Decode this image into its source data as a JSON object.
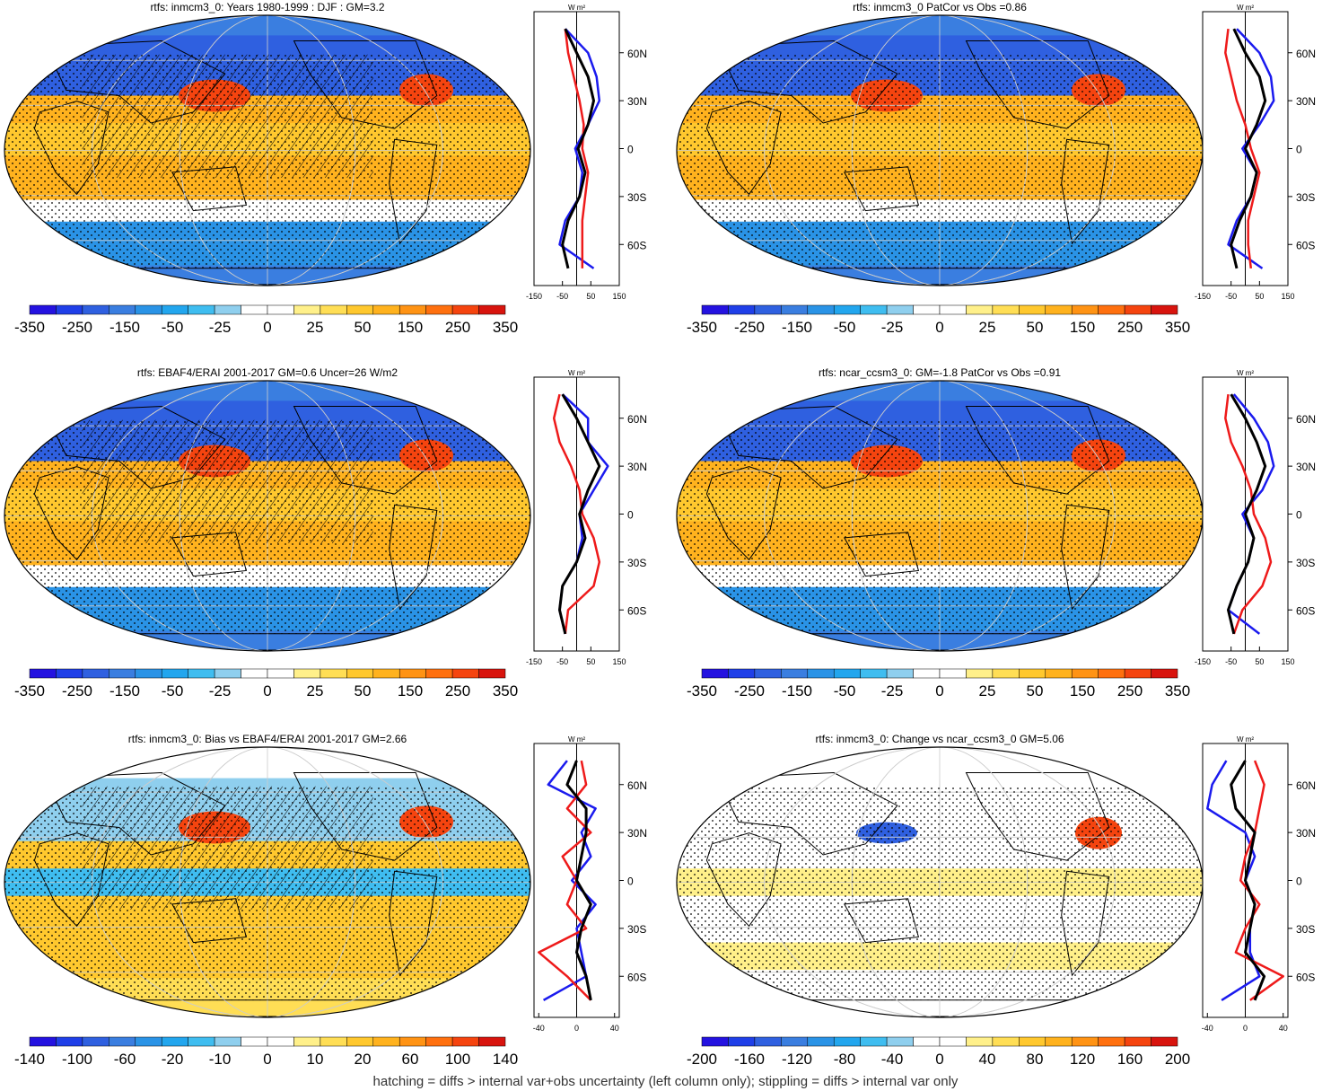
{
  "colors": {
    "cool": [
      "#2412e0",
      "#1f3fe8",
      "#2f60e0",
      "#3a7ee0",
      "#2a93e6",
      "#22a6ee",
      "#3fbdf0",
      "#8fcfee"
    ],
    "neutral": "#ffffff",
    "warm": [
      "#fff08a",
      "#ffde55",
      "#ffc82e",
      "#ffb21e",
      "#ff9314",
      "#ff700f",
      "#f5440f",
      "#d8140e"
    ],
    "hatch": "#000000",
    "profile_blue": "#1a1aee",
    "profile_red": "#ee1a1a",
    "profile_black": "#000000"
  },
  "profile_axis": {
    "unit": "W m²",
    "lat_labels": [
      "60N",
      "30N",
      "0",
      "30S",
      "60S"
    ],
    "lat_values": [
      60,
      30,
      0,
      -30,
      -60
    ]
  },
  "colorbars": {
    "main": [
      "-350",
      "-250",
      "-150",
      "-50",
      "-25",
      "0",
      "25",
      "50",
      "150",
      "250",
      "350"
    ],
    "bias": [
      "-140",
      "-100",
      "-60",
      "-20",
      "-10",
      "0",
      "10",
      "20",
      "60",
      "100",
      "140"
    ],
    "change": [
      "-200",
      "-160",
      "-120",
      "-80",
      "-40",
      "0",
      "40",
      "80",
      "120",
      "160",
      "200"
    ]
  },
  "panels": [
    {
      "title": "rtfs: inmcm3_0: Years 1980-1999 : DJF : GM=3.2",
      "hatched": true,
      "colorbar": "main",
      "profile_ticks": [
        "-150",
        "-50",
        "50",
        "150"
      ],
      "profile_range": [
        -150,
        150
      ]
    },
    {
      "title": "rtfs: inmcm3_0 PatCor vs Obs =0.86",
      "hatched": false,
      "colorbar": "main",
      "profile_ticks": [
        "-150",
        "-50",
        "50",
        "150"
      ],
      "profile_range": [
        -150,
        150
      ]
    },
    {
      "title": "rtfs: EBAF4/ERAI 2001-2017 GM=0.6 Uncer=26 W/m2",
      "hatched": true,
      "colorbar": "main",
      "profile_ticks": [
        "-150",
        "-50",
        "50",
        "150"
      ],
      "profile_range": [
        -150,
        150
      ]
    },
    {
      "title": "rtfs: ncar_ccsm3_0: GM=-1.8 PatCor vs Obs =0.91",
      "hatched": false,
      "colorbar": "main",
      "profile_ticks": [
        "-150",
        "-50",
        "50",
        "150"
      ],
      "profile_range": [
        -150,
        150
      ]
    },
    {
      "title": "rtfs: inmcm3_0: Bias vs EBAF4/ERAI 2001-2017 GM=2.66",
      "hatched": true,
      "colorbar": "bias",
      "profile_ticks": [
        "-40",
        "0",
        "40"
      ],
      "profile_range": [
        -45,
        45
      ]
    },
    {
      "title": "rtfs: inmcm3_0: Change vs ncar_ccsm3_0 GM=5.06",
      "hatched": false,
      "colorbar": "change",
      "profile_ticks": [
        "-40",
        "0",
        "40"
      ],
      "profile_range": [
        -45,
        45
      ]
    }
  ],
  "footer": "hatching = diffs > internal var+obs uncertainty (left column only); stippling = diffs > internal var only",
  "chart_data": [
    {
      "type": "heatmap",
      "title": "rtfs: inmcm3_0: Years 1980-1999 : DJF : GM=3.2",
      "profiles": {
        "x_range": [
          -150,
          150
        ],
        "lat": [
          75,
          60,
          45,
          30,
          15,
          0,
          -15,
          -30,
          -45,
          -60,
          -75
        ],
        "series": [
          {
            "color": "blue",
            "values": [
              -40,
              40,
              70,
              80,
              40,
              -5,
              20,
              10,
              -40,
              -60,
              60
            ]
          },
          {
            "color": "red",
            "values": [
              -40,
              -30,
              -10,
              10,
              25,
              20,
              40,
              30,
              20,
              20,
              20
            ]
          },
          {
            "color": "black",
            "values": [
              -40,
              0,
              40,
              60,
              40,
              5,
              30,
              10,
              -30,
              -50,
              -30
            ]
          }
        ]
      }
    },
    {
      "type": "heatmap",
      "title": "rtfs: inmcm3_0 PatCor vs Obs =0.86",
      "profiles": {
        "x_range": [
          -150,
          150
        ],
        "lat": [
          75,
          60,
          45,
          30,
          15,
          0,
          -15,
          -30,
          -45,
          -60,
          -75
        ],
        "series": [
          {
            "color": "blue",
            "values": [
              -30,
              50,
              90,
              100,
              50,
              -10,
              40,
              20,
              -30,
              -60,
              60
            ]
          },
          {
            "color": "red",
            "values": [
              -60,
              -70,
              -50,
              -30,
              0,
              20,
              50,
              30,
              10,
              10,
              20
            ]
          },
          {
            "color": "black",
            "values": [
              -40,
              0,
              50,
              70,
              40,
              0,
              40,
              20,
              -20,
              -50,
              -30
            ]
          }
        ]
      }
    },
    {
      "type": "heatmap",
      "title": "rtfs: EBAF4/ERAI 2001-2017 GM=0.6 Uncer=26 W/m2",
      "profiles": {
        "x_range": [
          -150,
          150
        ],
        "lat": [
          75,
          60,
          45,
          30,
          15,
          0,
          -15,
          -30,
          -45,
          -60,
          -75
        ],
        "series": [
          {
            "color": "blue",
            "values": [
              -50,
              40,
              40,
              110,
              60,
              10,
              20,
              0,
              -50,
              -60,
              -40
            ]
          },
          {
            "color": "red",
            "values": [
              -60,
              -80,
              -60,
              -20,
              10,
              20,
              60,
              80,
              60,
              -30,
              -40
            ]
          },
          {
            "color": "black",
            "values": [
              -50,
              0,
              40,
              80,
              40,
              10,
              30,
              0,
              -50,
              -60,
              -40
            ]
          }
        ]
      }
    },
    {
      "type": "heatmap",
      "title": "rtfs: ncar_ccsm3_0: GM=-1.8 PatCor vs Obs =0.91",
      "profiles": {
        "x_range": [
          -150,
          150
        ],
        "lat": [
          75,
          60,
          45,
          30,
          15,
          0,
          -15,
          -30,
          -45,
          -60,
          -75
        ],
        "series": [
          {
            "color": "blue",
            "values": [
              -40,
              30,
              80,
              100,
              60,
              -10,
              30,
              10,
              -30,
              -60,
              50
            ]
          },
          {
            "color": "red",
            "values": [
              -60,
              -70,
              -50,
              -10,
              20,
              30,
              70,
              90,
              60,
              -10,
              -40
            ]
          },
          {
            "color": "black",
            "values": [
              -50,
              0,
              40,
              70,
              40,
              0,
              30,
              10,
              -30,
              -60,
              -40
            ]
          }
        ]
      }
    },
    {
      "type": "heatmap",
      "title": "rtfs: inmcm3_0: Bias vs EBAF4/ERAI 2001-2017 GM=2.66",
      "profiles": {
        "x_range": [
          -45,
          45
        ],
        "lat": [
          75,
          60,
          45,
          30,
          15,
          0,
          -15,
          -30,
          -45,
          -60,
          -75
        ],
        "series": [
          {
            "color": "blue",
            "values": [
              -10,
              -30,
              20,
              5,
              15,
              -5,
              20,
              0,
              5,
              10,
              -35
            ]
          },
          {
            "color": "red",
            "values": [
              5,
              10,
              -10,
              15,
              -15,
              0,
              -10,
              10,
              -40,
              -10,
              15
            ]
          },
          {
            "color": "black",
            "values": [
              0,
              -10,
              10,
              10,
              5,
              0,
              15,
              5,
              0,
              10,
              15
            ]
          }
        ]
      }
    },
    {
      "type": "heatmap",
      "title": "rtfs: inmcm3_0: Change vs ncar_ccsm3_0 GM=5.06",
      "profiles": {
        "x_range": [
          -45,
          45
        ],
        "lat": [
          75,
          60,
          45,
          30,
          15,
          0,
          -15,
          -30,
          -45,
          -60,
          -75
        ],
        "series": [
          {
            "color": "blue",
            "values": [
              -20,
              -35,
              -40,
              0,
              10,
              0,
              10,
              5,
              5,
              15,
              -25
            ]
          },
          {
            "color": "red",
            "values": [
              10,
              20,
              15,
              10,
              0,
              -5,
              15,
              0,
              -10,
              40,
              5
            ]
          },
          {
            "color": "black",
            "values": [
              0,
              -15,
              -10,
              10,
              5,
              0,
              10,
              5,
              0,
              20,
              10
            ]
          }
        ]
      }
    }
  ]
}
